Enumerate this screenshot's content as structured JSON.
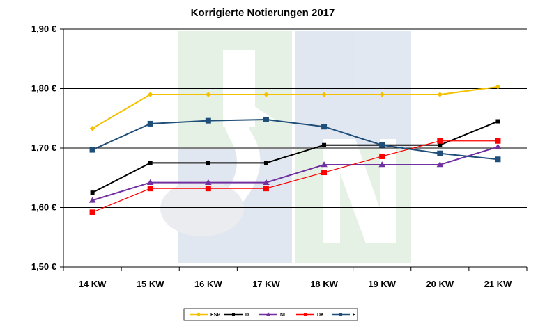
{
  "chart_data": {
    "type": "line",
    "title": "Korrigierte Notierungen 2017",
    "xlabel": "",
    "ylabel": "",
    "categories": [
      "14 KW",
      "15 KW",
      "16 KW",
      "17 KW",
      "18 KW",
      "19 KW",
      "20 KW",
      "21 KW"
    ],
    "ylim": [
      1.5,
      1.9
    ],
    "yticks": [
      1.5,
      1.6,
      1.7,
      1.8,
      1.9
    ],
    "ytick_labels": [
      "1,50 €",
      "1,60 €",
      "1,70 €",
      "1,80 €",
      "1,90 €"
    ],
    "grid": "horizontal major",
    "legend_position": "bottom",
    "series": [
      {
        "name": "ESP",
        "color": "#F5C000",
        "marker": "diamond",
        "values": [
          1.733,
          1.79,
          1.79,
          1.79,
          1.79,
          1.79,
          1.79,
          1.803
        ]
      },
      {
        "name": "D",
        "color": "#000000",
        "marker": "square",
        "values": [
          1.625,
          1.675,
          1.675,
          1.675,
          1.705,
          1.705,
          1.705,
          1.745
        ]
      },
      {
        "name": "NL",
        "color": "#7030A0",
        "marker": "triangle",
        "values": [
          1.612,
          1.642,
          1.642,
          1.642,
          1.672,
          1.672,
          1.672,
          1.702
        ]
      },
      {
        "name": "DK",
        "color": "#FF0000",
        "marker": "square",
        "values": [
          1.592,
          1.632,
          1.632,
          1.632,
          1.659,
          1.686,
          1.712,
          1.712
        ]
      },
      {
        "name": "F",
        "color": "#1F4E79",
        "marker": "square",
        "values": [
          1.697,
          1.741,
          1.746,
          1.748,
          1.736,
          1.705,
          1.691,
          1.681
        ]
      }
    ]
  }
}
